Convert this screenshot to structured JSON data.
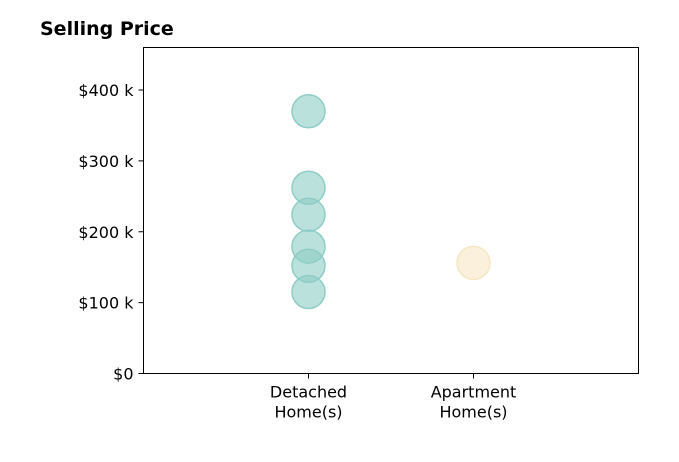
{
  "chart_data": {
    "type": "scatter",
    "title": "Selling Price",
    "xlabel": "",
    "ylabel": "",
    "categories": [
      "Detached Home(s)",
      "Apartment Home(s)"
    ],
    "category_tick_lines": [
      [
        "Detached",
        "Home(s)"
      ],
      [
        "Apartment",
        "Home(s)"
      ]
    ],
    "xlim": [
      -1,
      2
    ],
    "ylim": [
      0,
      460000
    ],
    "y_ticks": [
      0,
      100000,
      200000,
      300000,
      400000
    ],
    "y_tick_labels": [
      "$0",
      "$100 k",
      "$200 k",
      "$300 k",
      "$400 k"
    ],
    "grid": false,
    "series": [
      {
        "category": "Detached Home(s)",
        "color": "#8ecdc5",
        "values": [
          370000,
          262000,
          224000,
          179000,
          152000,
          115000
        ]
      },
      {
        "category": "Apartment Home(s)",
        "color": "#f6e6c4",
        "values": [
          156000
        ]
      }
    ]
  }
}
